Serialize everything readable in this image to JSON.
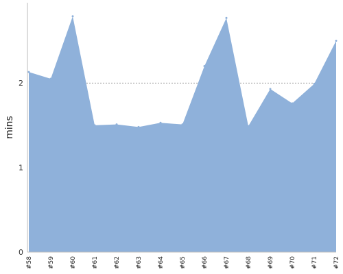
{
  "chart_data": {
    "type": "area",
    "ylabel": "mins",
    "xlabel": "",
    "categories": [
      "#58",
      "#59",
      "#60",
      "#61",
      "#62",
      "#63",
      "#64",
      "#65",
      "#66",
      "#67",
      "#68",
      "#69",
      "#70",
      "#71",
      "#72"
    ],
    "values": [
      2.13,
      2.05,
      2.79,
      1.5,
      1.51,
      1.48,
      1.53,
      1.51,
      2.2,
      2.77,
      1.49,
      1.93,
      1.76,
      1.99,
      2.5
    ],
    "ylim": [
      0,
      2.95
    ],
    "yticks": [
      0,
      1,
      2
    ],
    "grid": "horizontal dotted at 1 and 2",
    "legend": "none",
    "fill_color": "#8fb1da",
    "grid_color": "#808080",
    "axis_color": "#bbbbbb"
  }
}
